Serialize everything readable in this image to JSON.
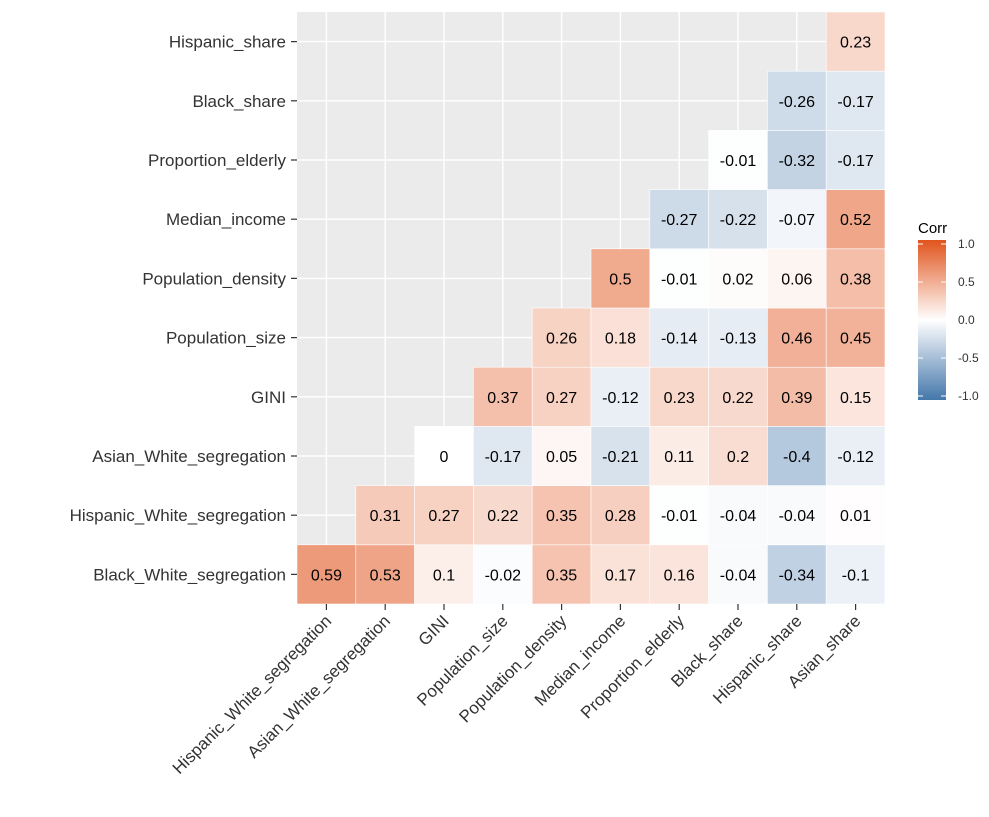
{
  "chart_data": {
    "type": "heatmap",
    "title": "",
    "xlabel": "",
    "ylabel": "",
    "x_categories": [
      "Hispanic_White_segregation",
      "Asian_White_segregation",
      "GINI",
      "Population_size",
      "Population_density",
      "Median_income",
      "Proportion_elderly",
      "Black_share",
      "Hispanic_share",
      "Asian_share"
    ],
    "y_categories": [
      "Black_White_segregation",
      "Hispanic_White_segregation",
      "Asian_White_segregation",
      "GINI",
      "Population_size",
      "Population_density",
      "Median_income",
      "Proportion_elderly",
      "Black_share",
      "Hispanic_share"
    ],
    "cells": [
      {
        "x": "Hispanic_White_segregation",
        "y": "Black_White_segregation",
        "value": 0.59,
        "label": "0.59"
      },
      {
        "x": "Asian_White_segregation",
        "y": "Black_White_segregation",
        "value": 0.53,
        "label": "0.53"
      },
      {
        "x": "GINI",
        "y": "Black_White_segregation",
        "value": 0.1,
        "label": "0.1"
      },
      {
        "x": "Population_size",
        "y": "Black_White_segregation",
        "value": -0.02,
        "label": "-0.02"
      },
      {
        "x": "Population_density",
        "y": "Black_White_segregation",
        "value": 0.35,
        "label": "0.35"
      },
      {
        "x": "Median_income",
        "y": "Black_White_segregation",
        "value": 0.17,
        "label": "0.17"
      },
      {
        "x": "Proportion_elderly",
        "y": "Black_White_segregation",
        "value": 0.16,
        "label": "0.16"
      },
      {
        "x": "Black_share",
        "y": "Black_White_segregation",
        "value": -0.04,
        "label": "-0.04"
      },
      {
        "x": "Hispanic_share",
        "y": "Black_White_segregation",
        "value": -0.34,
        "label": "-0.34"
      },
      {
        "x": "Asian_share",
        "y": "Black_White_segregation",
        "value": -0.1,
        "label": "-0.1"
      },
      {
        "x": "Asian_White_segregation",
        "y": "Hispanic_White_segregation",
        "value": 0.31,
        "label": "0.31"
      },
      {
        "x": "GINI",
        "y": "Hispanic_White_segregation",
        "value": 0.27,
        "label": "0.27"
      },
      {
        "x": "Population_size",
        "y": "Hispanic_White_segregation",
        "value": 0.22,
        "label": "0.22"
      },
      {
        "x": "Population_density",
        "y": "Hispanic_White_segregation",
        "value": 0.35,
        "label": "0.35"
      },
      {
        "x": "Median_income",
        "y": "Hispanic_White_segregation",
        "value": 0.28,
        "label": "0.28"
      },
      {
        "x": "Proportion_elderly",
        "y": "Hispanic_White_segregation",
        "value": -0.01,
        "label": "-0.01"
      },
      {
        "x": "Black_share",
        "y": "Hispanic_White_segregation",
        "value": -0.04,
        "label": "-0.04"
      },
      {
        "x": "Hispanic_share",
        "y": "Hispanic_White_segregation",
        "value": -0.04,
        "label": "-0.04"
      },
      {
        "x": "Asian_share",
        "y": "Hispanic_White_segregation",
        "value": 0.01,
        "label": "0.01"
      },
      {
        "x": "GINI",
        "y": "Asian_White_segregation",
        "value": 0,
        "label": "0"
      },
      {
        "x": "Population_size",
        "y": "Asian_White_segregation",
        "value": -0.17,
        "label": "-0.17"
      },
      {
        "x": "Population_density",
        "y": "Asian_White_segregation",
        "value": 0.05,
        "label": "0.05"
      },
      {
        "x": "Median_income",
        "y": "Asian_White_segregation",
        "value": -0.21,
        "label": "-0.21"
      },
      {
        "x": "Proportion_elderly",
        "y": "Asian_White_segregation",
        "value": 0.11,
        "label": "0.11"
      },
      {
        "x": "Black_share",
        "y": "Asian_White_segregation",
        "value": 0.2,
        "label": "0.2"
      },
      {
        "x": "Hispanic_share",
        "y": "Asian_White_segregation",
        "value": -0.4,
        "label": "-0.4"
      },
      {
        "x": "Asian_share",
        "y": "Asian_White_segregation",
        "value": -0.12,
        "label": "-0.12"
      },
      {
        "x": "Population_size",
        "y": "GINI",
        "value": 0.37,
        "label": "0.37"
      },
      {
        "x": "Population_density",
        "y": "GINI",
        "value": 0.27,
        "label": "0.27"
      },
      {
        "x": "Median_income",
        "y": "GINI",
        "value": -0.12,
        "label": "-0.12"
      },
      {
        "x": "Proportion_elderly",
        "y": "GINI",
        "value": 0.23,
        "label": "0.23"
      },
      {
        "x": "Black_share",
        "y": "GINI",
        "value": 0.22,
        "label": "0.22"
      },
      {
        "x": "Hispanic_share",
        "y": "GINI",
        "value": 0.39,
        "label": "0.39"
      },
      {
        "x": "Asian_share",
        "y": "GINI",
        "value": 0.15,
        "label": "0.15"
      },
      {
        "x": "Population_density",
        "y": "Population_size",
        "value": 0.26,
        "label": "0.26"
      },
      {
        "x": "Median_income",
        "y": "Population_size",
        "value": 0.18,
        "label": "0.18"
      },
      {
        "x": "Proportion_elderly",
        "y": "Population_size",
        "value": -0.14,
        "label": "-0.14"
      },
      {
        "x": "Black_share",
        "y": "Population_size",
        "value": -0.13,
        "label": "-0.13"
      },
      {
        "x": "Hispanic_share",
        "y": "Population_size",
        "value": 0.46,
        "label": "0.46"
      },
      {
        "x": "Asian_share",
        "y": "Population_size",
        "value": 0.45,
        "label": "0.45"
      },
      {
        "x": "Median_income",
        "y": "Population_density",
        "value": 0.5,
        "label": "0.5"
      },
      {
        "x": "Proportion_elderly",
        "y": "Population_density",
        "value": -0.01,
        "label": "-0.01"
      },
      {
        "x": "Black_share",
        "y": "Population_density",
        "value": 0.02,
        "label": "0.02"
      },
      {
        "x": "Hispanic_share",
        "y": "Population_density",
        "value": 0.06,
        "label": "0.06"
      },
      {
        "x": "Asian_share",
        "y": "Population_density",
        "value": 0.38,
        "label": "0.38"
      },
      {
        "x": "Proportion_elderly",
        "y": "Median_income",
        "value": -0.27,
        "label": "-0.27"
      },
      {
        "x": "Black_share",
        "y": "Median_income",
        "value": -0.22,
        "label": "-0.22"
      },
      {
        "x": "Hispanic_share",
        "y": "Median_income",
        "value": -0.07,
        "label": "-0.07"
      },
      {
        "x": "Asian_share",
        "y": "Median_income",
        "value": 0.52,
        "label": "0.52"
      },
      {
        "x": "Black_share",
        "y": "Proportion_elderly",
        "value": -0.01,
        "label": "-0.01"
      },
      {
        "x": "Hispanic_share",
        "y": "Proportion_elderly",
        "value": -0.32,
        "label": "-0.32"
      },
      {
        "x": "Asian_share",
        "y": "Proportion_elderly",
        "value": -0.17,
        "label": "-0.17"
      },
      {
        "x": "Hispanic_share",
        "y": "Black_share",
        "value": -0.26,
        "label": "-0.26"
      },
      {
        "x": "Asian_share",
        "y": "Black_share",
        "value": -0.17,
        "label": "-0.17"
      },
      {
        "x": "Asian_share",
        "y": "Hispanic_share",
        "value": 0.23,
        "label": "0.23"
      }
    ],
    "legend": {
      "title": "Corr",
      "ticks": [
        "1.0",
        "0.5",
        "0.0",
        "-0.5",
        "-1.0"
      ],
      "tick_values": [
        1.0,
        0.5,
        0.0,
        -0.5,
        -1.0
      ],
      "placement": "right"
    },
    "value_range": [
      -1,
      1
    ],
    "colors": {
      "low": "#4477AA",
      "mid": "#FFFFFF",
      "high": "#E1541D",
      "panel_background": "#EBEBEB",
      "grid": "#FFFFFF"
    },
    "grid": true
  }
}
